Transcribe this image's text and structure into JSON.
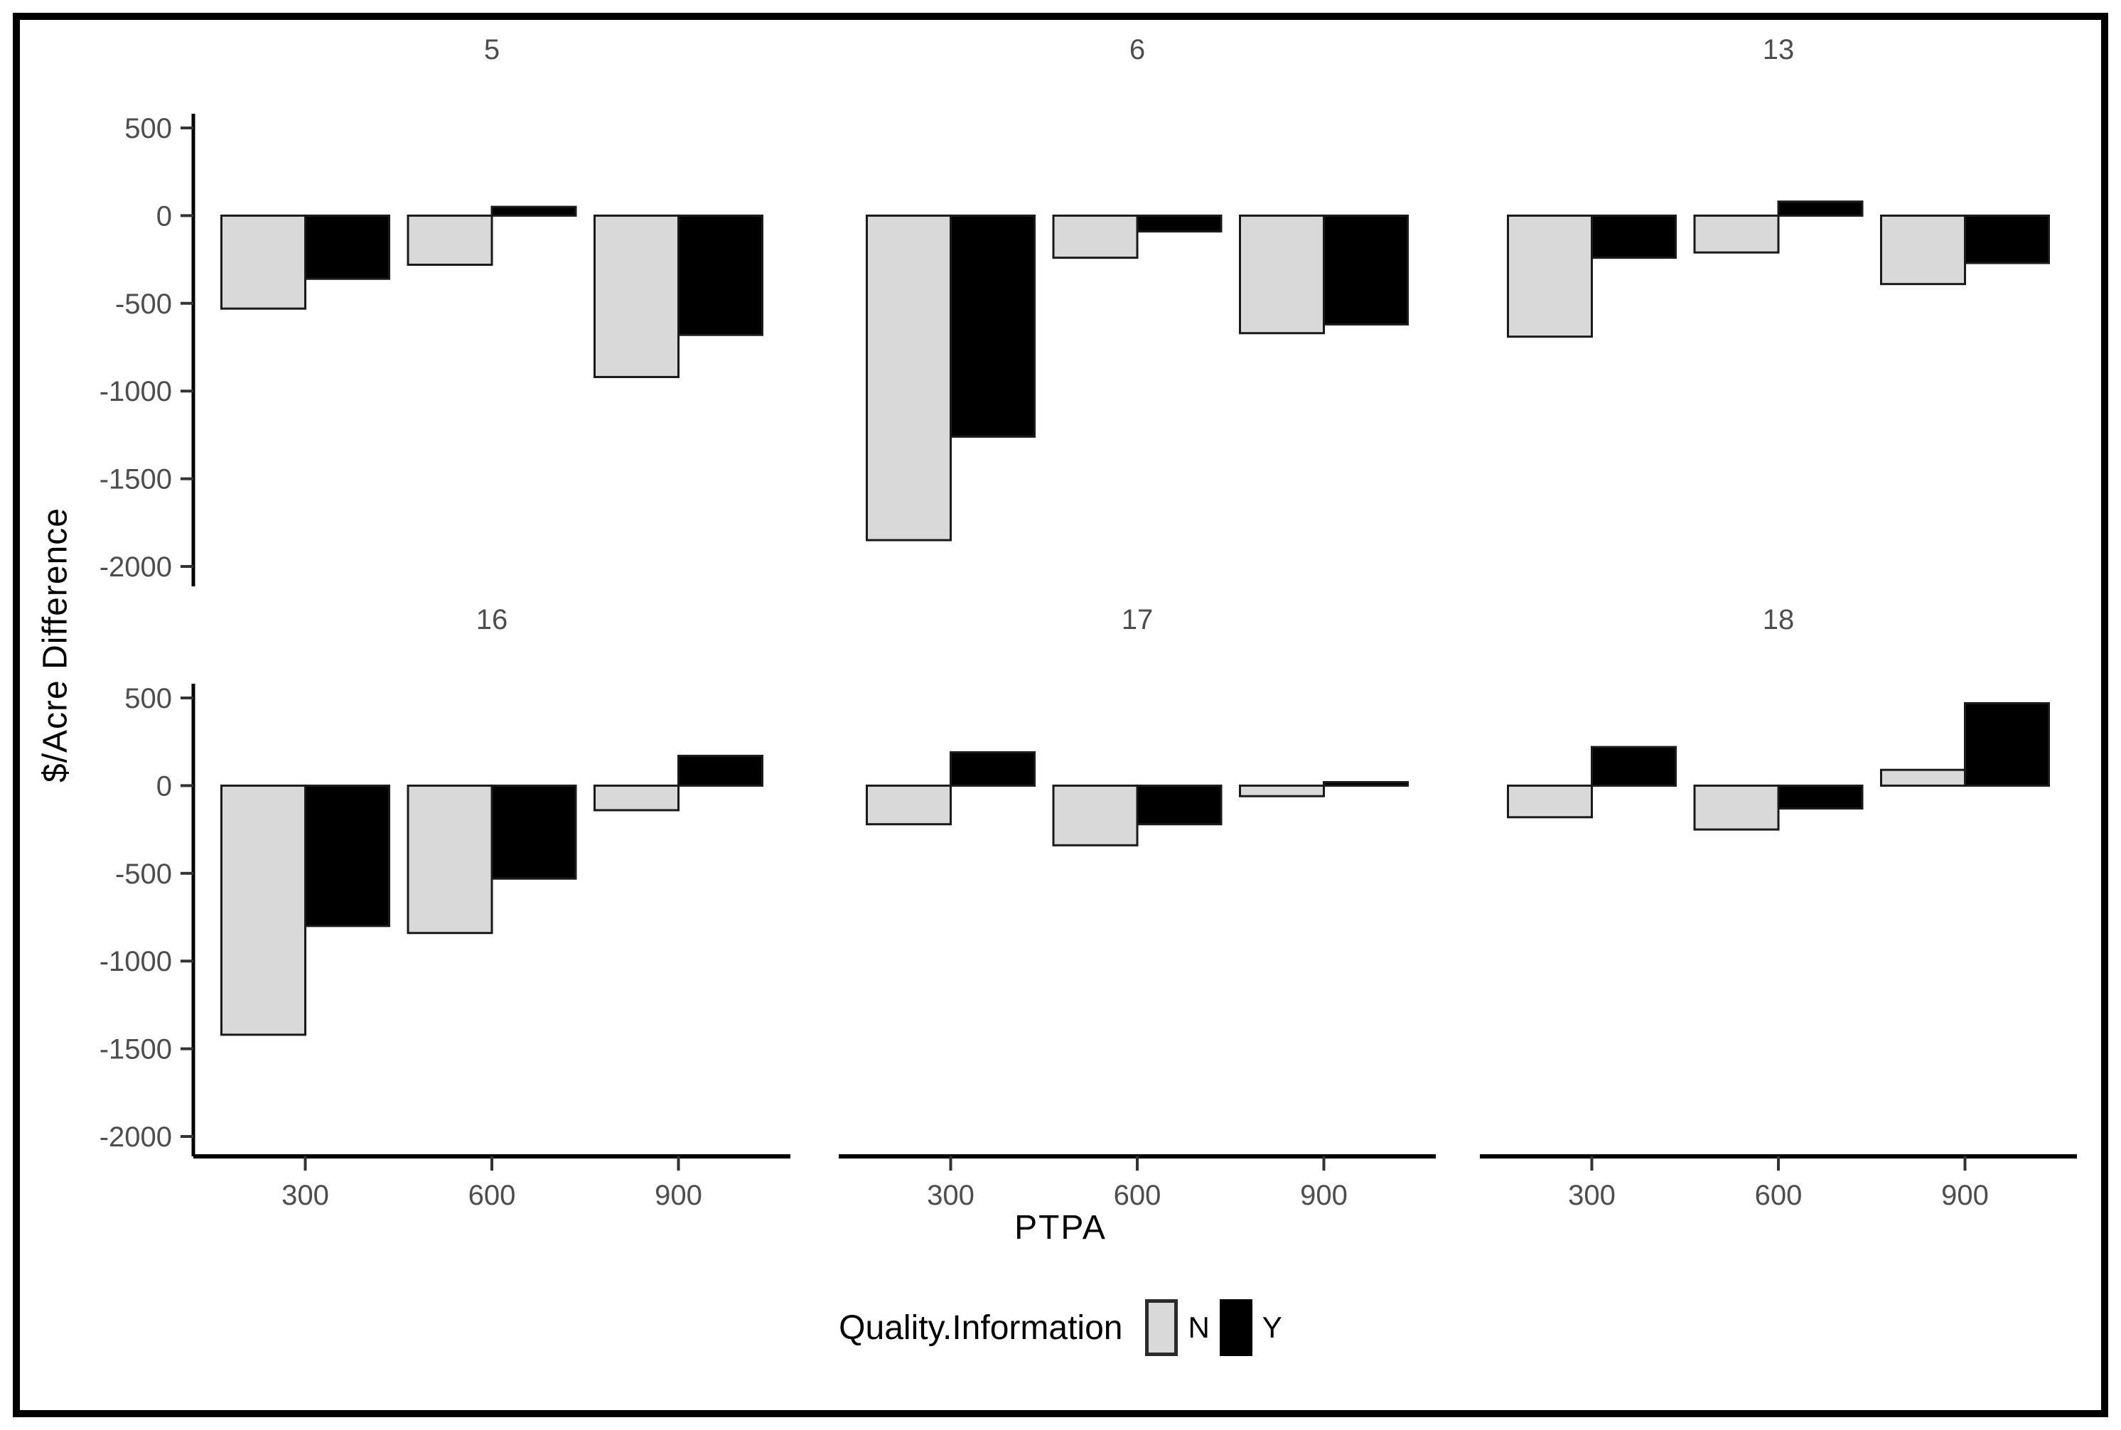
{
  "chart_data": {
    "type": "bar",
    "title": "",
    "xlabel": "PTPA",
    "ylabel": "$/Acre Difference",
    "legend_title": "Quality.Information",
    "legend_entries": [
      "N",
      "Y"
    ],
    "legend_position": "bottom",
    "grid": false,
    "categories": [
      "300",
      "600",
      "900"
    ],
    "y_ticks": [
      500,
      0,
      -500,
      -1000,
      -1500,
      -2000
    ],
    "ylim": [
      -2150,
      620
    ],
    "colors": {
      "N": "#d9d9d9",
      "Y": "#000000",
      "bar_stroke": "#1a1a1a",
      "axis_line": "#000000",
      "tick_label": "#4d4d4d",
      "facet_title": "#4d4d4d"
    },
    "facets": [
      {
        "label": "5",
        "series": [
          {
            "name": "N",
            "values": [
              -530,
              -280,
              -920
            ]
          },
          {
            "name": "Y",
            "values": [
              -360,
              50,
              -680
            ]
          }
        ]
      },
      {
        "label": "6",
        "series": [
          {
            "name": "N",
            "values": [
              -1850,
              -240,
              -670
            ]
          },
          {
            "name": "Y",
            "values": [
              -1260,
              -90,
              -620
            ]
          }
        ]
      },
      {
        "label": "13",
        "series": [
          {
            "name": "N",
            "values": [
              -690,
              -210,
              -390
            ]
          },
          {
            "name": "Y",
            "values": [
              -240,
              80,
              -270
            ]
          }
        ]
      },
      {
        "label": "16",
        "series": [
          {
            "name": "N",
            "values": [
              -1420,
              -840,
              -140
            ]
          },
          {
            "name": "Y",
            "values": [
              -800,
              -530,
              170
            ]
          }
        ]
      },
      {
        "label": "17",
        "series": [
          {
            "name": "N",
            "values": [
              -220,
              -340,
              -60
            ]
          },
          {
            "name": "Y",
            "values": [
              190,
              -220,
              20
            ]
          }
        ]
      },
      {
        "label": "18",
        "series": [
          {
            "name": "N",
            "values": [
              -180,
              -250,
              90
            ]
          },
          {
            "name": "Y",
            "values": [
              220,
              -130,
              470
            ]
          }
        ]
      }
    ]
  }
}
